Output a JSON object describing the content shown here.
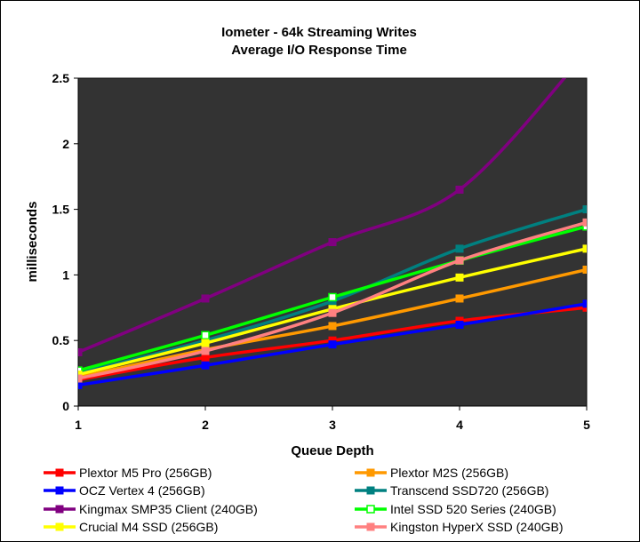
{
  "chart_data": {
    "type": "line",
    "title": "Iometer - 64k Streaming Writes",
    "subtitle": "Average I/O Response Time",
    "xlabel": "Queue Depth",
    "ylabel": "milliseconds",
    "x": [
      1,
      2,
      3,
      4,
      5
    ],
    "x_tick_labels": [
      "1",
      "2",
      "3",
      "4",
      "5"
    ],
    "xlim": [
      1,
      5
    ],
    "ylim": [
      0,
      2.5
    ],
    "y_ticks": [
      0,
      0.5,
      1,
      1.5,
      2,
      2.5
    ],
    "y_tick_labels": [
      "0",
      "0.5",
      "1",
      "1.5",
      "2",
      "2.5"
    ],
    "grid": false,
    "plot_background": "#333333",
    "legend_position": "bottom",
    "series": [
      {
        "name": "Plextor M5 Pro (256GB)",
        "color": "#ff0000",
        "values": [
          0.2,
          0.37,
          0.5,
          0.65,
          0.75
        ],
        "marker": "square"
      },
      {
        "name": "Plextor M2S (256GB)",
        "color": "#ff9900",
        "values": [
          0.22,
          0.43,
          0.61,
          0.82,
          1.04
        ],
        "marker": "square"
      },
      {
        "name": "OCZ Vertex 4 (256GB)",
        "color": "#0000ff",
        "values": [
          0.16,
          0.31,
          0.47,
          0.62,
          0.78
        ],
        "marker": "square"
      },
      {
        "name": "Transcend SSD720 (256GB)",
        "color": "#008080",
        "values": [
          0.25,
          0.5,
          0.8,
          1.2,
          1.5
        ],
        "marker": "square"
      },
      {
        "name": "Kingmax SMP35 Client (240GB)",
        "color": "#800080",
        "values": [
          0.41,
          0.82,
          1.25,
          1.65,
          2.7
        ],
        "marker": "square"
      },
      {
        "name": "Intel SSD 520 Series (240GB)",
        "color": "#00ff00",
        "values": [
          0.27,
          0.54,
          0.83,
          1.11,
          1.37
        ],
        "marker": "open-square"
      },
      {
        "name": "Crucial M4 SSD (256GB)",
        "color": "#ffff00",
        "values": [
          0.24,
          0.48,
          0.74,
          0.98,
          1.2
        ],
        "marker": "square"
      },
      {
        "name": "Kingston HyperX SSD (240GB)",
        "color": "#ff8080",
        "values": [
          0.21,
          0.42,
          0.71,
          1.11,
          1.4
        ],
        "marker": "square"
      }
    ]
  }
}
